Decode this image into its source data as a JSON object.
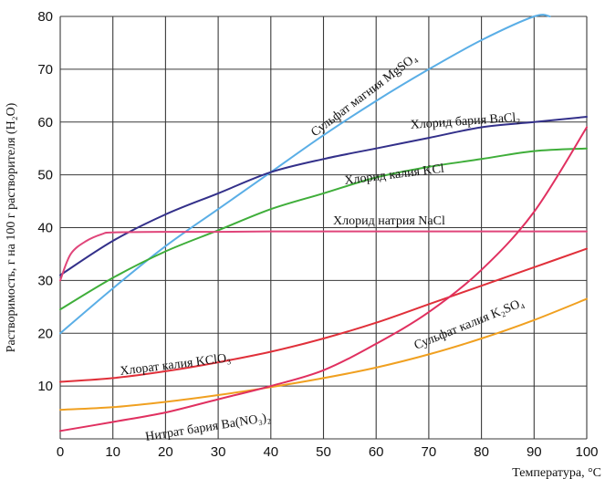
{
  "chart_data": {
    "type": "line",
    "xlabel": "Температура, °C",
    "ylabel": "Растворимость, г на 100 г растворителя (H₂O)",
    "xlim": [
      0,
      100
    ],
    "ylim": [
      0,
      80
    ],
    "xticks": [
      "0",
      "10",
      "20",
      "30",
      "40",
      "50",
      "60",
      "70",
      "80",
      "90",
      "100"
    ],
    "yticks": [
      "10",
      "20",
      "30",
      "40",
      "50",
      "60",
      "70",
      "80"
    ],
    "grid": true,
    "series": [
      {
        "name": "Сульфат магния MgSO₄",
        "color": "#5aaee6",
        "x": [
          0,
          10,
          20,
          30,
          40,
          50,
          60,
          70,
          80,
          90,
          93
        ],
        "y": [
          20,
          28.5,
          36.5,
          43.5,
          50.5,
          57.5,
          64,
          70,
          75.5,
          80,
          80
        ]
      },
      {
        "name": "Хлорид бария BaCl₂",
        "color": "#33308a",
        "x": [
          0,
          10,
          20,
          30,
          40,
          50,
          60,
          70,
          80,
          90,
          100
        ],
        "y": [
          31,
          37.5,
          42.5,
          46.5,
          50.5,
          53,
          55,
          57,
          59,
          60,
          61
        ]
      },
      {
        "name": "Хлорид калия KCl",
        "color": "#3fae3a",
        "x": [
          0,
          10,
          20,
          30,
          40,
          50,
          60,
          70,
          80,
          90,
          100
        ],
        "y": [
          24.5,
          30.5,
          35.5,
          39.5,
          43.5,
          46.5,
          49.5,
          51.5,
          53,
          54.5,
          55
        ]
      },
      {
        "name": "Хлорид натрия NaCl",
        "color": "#e0457a",
        "x": [
          0,
          2,
          5,
          8,
          10,
          20,
          30,
          40,
          50,
          60,
          70,
          80,
          90,
          100
        ],
        "y": [
          30,
          35,
          37.5,
          38.8,
          39.1,
          39.2,
          39.2,
          39.3,
          39.3,
          39.3,
          39.3,
          39.3,
          39.3,
          39.3
        ]
      },
      {
        "name": "Хлорат калия KClO₃",
        "color": "#e0303a",
        "x": [
          0,
          10,
          20,
          30,
          40,
          50,
          60,
          70,
          80,
          90,
          100
        ],
        "y": [
          10.8,
          11.5,
          12.8,
          14.5,
          16.5,
          19,
          22,
          25.5,
          29,
          32.5,
          36
        ]
      },
      {
        "name": "Сульфат калия K₂SO₄",
        "color": "#f0a020",
        "x": [
          0,
          10,
          20,
          30,
          40,
          50,
          60,
          70,
          80,
          90,
          100
        ],
        "y": [
          5.5,
          6,
          7,
          8.3,
          9.8,
          11.5,
          13.5,
          16,
          19,
          22.5,
          26.5
        ]
      },
      {
        "name": "Нитрат бария Ba(NO₃)₂",
        "color": "#e03060",
        "x": [
          0,
          10,
          20,
          30,
          40,
          50,
          60,
          70,
          80,
          90,
          100
        ],
        "y": [
          1.5,
          3.2,
          5,
          7.5,
          10,
          13,
          18,
          24,
          32,
          43,
          59
        ]
      }
    ],
    "annotations": [
      {
        "text": "Сульфат магния MgSO₄"
      },
      {
        "text": "Хлорид бария BaCl₂"
      },
      {
        "text": "Хлорид калия KCl"
      },
      {
        "text": "Хлорид натрия NaCl"
      },
      {
        "text": "Хлорат калия KClO₃"
      },
      {
        "text": "Сульфат калия K₂SO₄"
      },
      {
        "text": "Нитрат бария Ba(NO₃)₂"
      }
    ]
  }
}
